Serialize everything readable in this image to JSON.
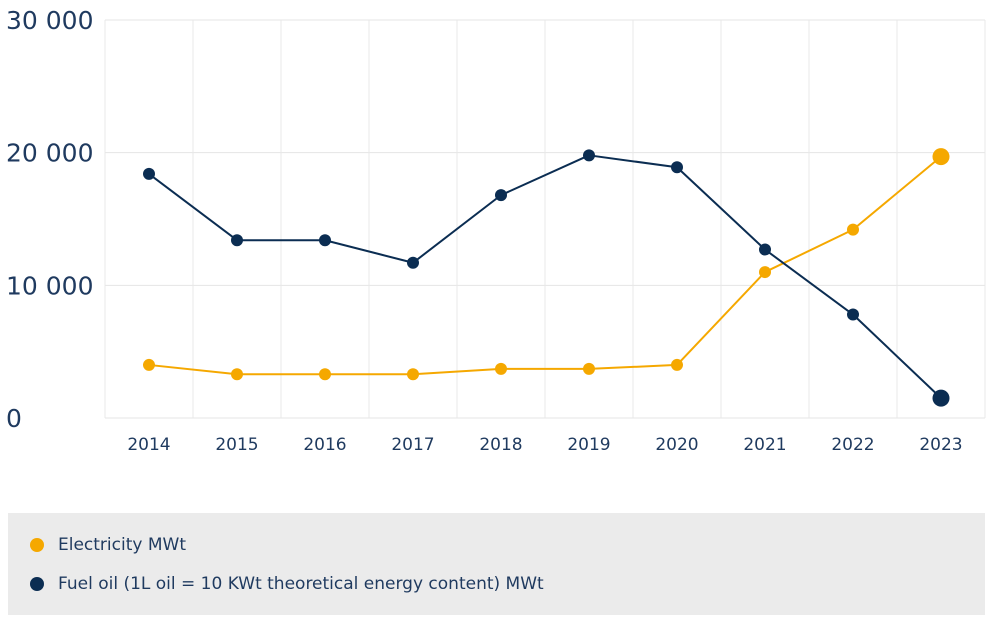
{
  "chart_data": {
    "type": "line",
    "title": "",
    "xlabel": "",
    "ylabel": "",
    "categories": [
      "2014",
      "2015",
      "2016",
      "2017",
      "2018",
      "2019",
      "2020",
      "2021",
      "2022",
      "2023"
    ],
    "y_ticks": [
      0,
      10000,
      20000,
      30000
    ],
    "y_tick_labels": [
      "0",
      "10 000",
      "20 000",
      "30 000"
    ],
    "ylim": [
      0,
      30000
    ],
    "grid": true,
    "legend_position": "bottom",
    "series": [
      {
        "name": "Electricity MWt",
        "color": "#f5a800",
        "values": [
          4000,
          3300,
          3300,
          3300,
          3700,
          3700,
          4000,
          11000,
          14200,
          19700
        ]
      },
      {
        "name": "Fuel oil (1L oil = 10 KWt theoretical energy content) MWt",
        "color": "#0b2d52",
        "values": [
          18400,
          13400,
          13400,
          11700,
          16800,
          19800,
          18900,
          12700,
          7800,
          1500
        ]
      }
    ]
  }
}
